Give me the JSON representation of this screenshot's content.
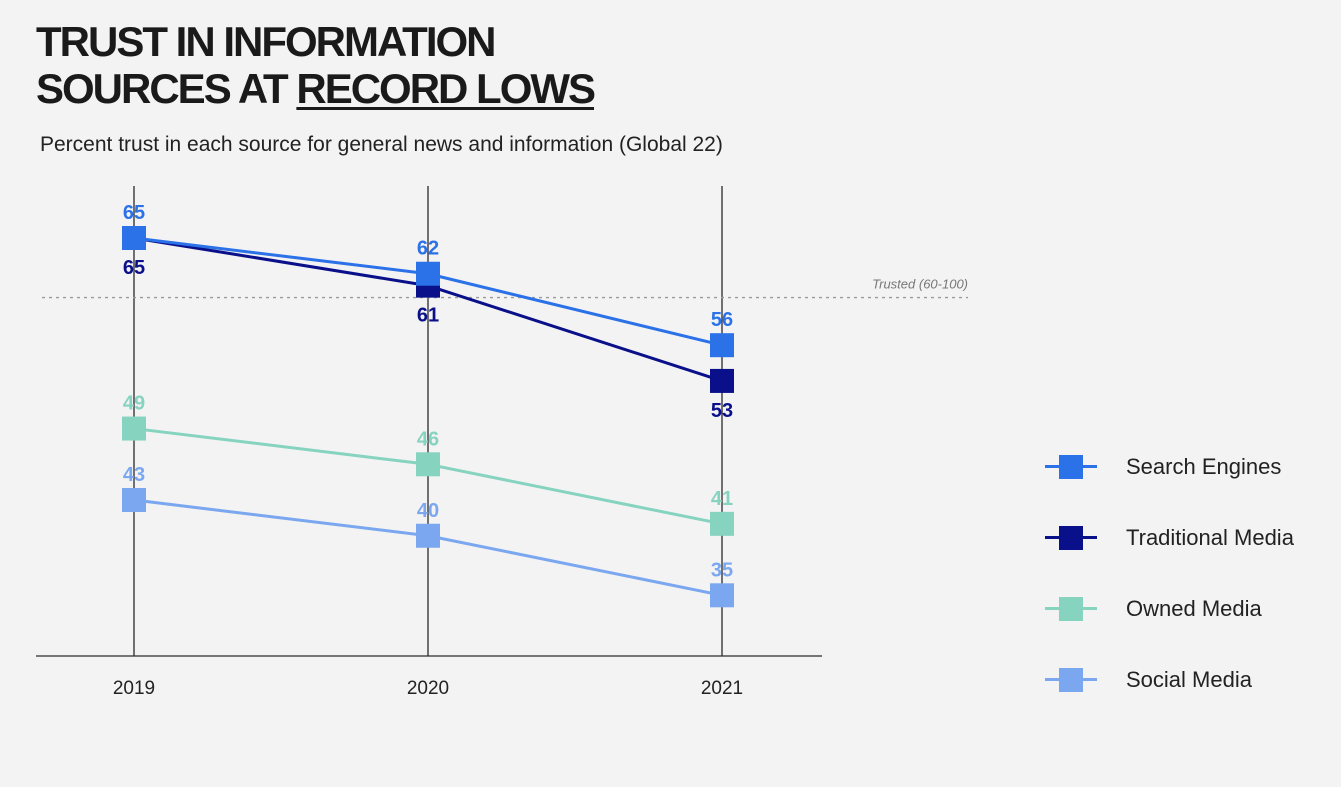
{
  "title": {
    "line1": "TRUST IN INFORMATION",
    "line2_prefix": "SOURCES AT ",
    "line2_highlight": "RECORD LOWS"
  },
  "subtitle": "Percent trust in each source for general news and information (Global 22)",
  "chart_data": {
    "type": "line",
    "title": "TRUST IN INFORMATION SOURCES AT RECORD LOWS",
    "subtitle": "Percent trust in each source for general news and information (Global 22)",
    "categories": [
      "2019",
      "2020",
      "2021"
    ],
    "ylim": [
      25,
      70
    ],
    "reference_line": {
      "value": 60,
      "label": "Trusted (60-100)"
    },
    "legend_position": "right",
    "series": [
      {
        "name": "Search Engines",
        "values": [
          65,
          62,
          56
        ],
        "color": "#2b72e8",
        "label_side": [
          "above",
          "above",
          "above"
        ]
      },
      {
        "name": "Traditional Media",
        "values": [
          65,
          61,
          53
        ],
        "color": "#0a0f8a",
        "label_side": [
          "below",
          "below",
          "below"
        ]
      },
      {
        "name": "Owned Media",
        "values": [
          49,
          46,
          41
        ],
        "color": "#86d3c0",
        "label_side": [
          "above",
          "above",
          "above"
        ]
      },
      {
        "name": "Social Media",
        "values": [
          43,
          40,
          35
        ],
        "color": "#7aa7ef",
        "label_side": [
          "above",
          "above",
          "above"
        ]
      }
    ]
  }
}
